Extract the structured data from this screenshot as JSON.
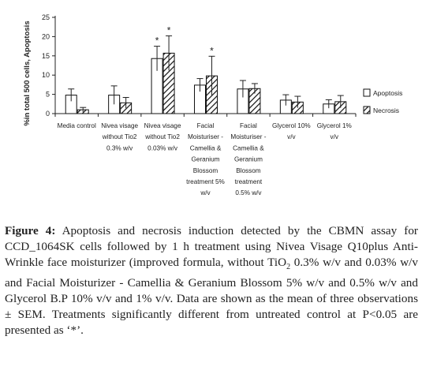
{
  "chart_data": {
    "type": "bar",
    "ylabel": "%in total 500 cells, Apoptosis",
    "ylim": [
      0,
      25
    ],
    "yticks": [
      0,
      5,
      10,
      15,
      20,
      25
    ],
    "grid": false,
    "legend_position": "right",
    "categories": [
      [
        "Media control"
      ],
      [
        "Nivea visage",
        "without Tio2",
        "0.3% w/v"
      ],
      [
        "Nivea visage",
        "without Tio2",
        "0.03% w/v"
      ],
      [
        "Facial",
        "Moisturiser -",
        "Camellia &",
        "Geranium",
        "Blossom",
        "treatment 5%",
        "w/v"
      ],
      [
        "Facial",
        "Moisturiser -",
        "Camellia &",
        "Geranium",
        "Blossom",
        "treatment",
        "0.5% w/v"
      ],
      [
        "Glycerol 10%",
        "v/v"
      ],
      [
        "Glycerol 1%",
        "v/v"
      ]
    ],
    "series": [
      {
        "name": "Apoptosis",
        "fill": "open",
        "values": [
          4.8,
          4.8,
          14.3,
          7.4,
          6.4,
          3.5,
          2.5
        ],
        "errors": [
          1.6,
          2.4,
          3.2,
          1.7,
          2.2,
          1.4,
          1.1
        ],
        "significant": [
          false,
          false,
          true,
          false,
          false,
          false,
          false
        ]
      },
      {
        "name": "Necrosis",
        "fill": "hatched",
        "values": [
          1.0,
          2.8,
          15.7,
          9.8,
          6.5,
          3.0,
          3.1
        ],
        "errors": [
          0.6,
          1.4,
          4.5,
          5.1,
          1.3,
          1.5,
          1.6
        ],
        "significant": [
          false,
          false,
          true,
          true,
          false,
          false,
          false
        ]
      }
    ],
    "significance_marker": "*"
  },
  "caption": {
    "label": "Figure 4:",
    "segments": [
      {
        "t": " Apoptosis and necrosis induction detected by the CBMN assay for CCD_1064SK cells followed by 1 h treatment using Nivea Visage Q10plus Anti-Wrinkle face moisturizer (improved formula, without TiO"
      },
      {
        "t": "2",
        "sub": true
      },
      {
        "t": " 0.3% w/v and 0.03% w/v and Facial Moisturizer - Camellia & Geranium Blossom 5% w/v and 0.5% w/v and Glycerol B.P 10% v/v and 1% v/v. Data are shown as the mean of three observations ± SEM. Treatments significantly different from untreated control at P<0.05 are presented as ‘*’."
      }
    ]
  },
  "colors": {
    "axis": "#222222",
    "bar_stroke": "#111111",
    "hatch": "#111111",
    "text": "#222222"
  }
}
